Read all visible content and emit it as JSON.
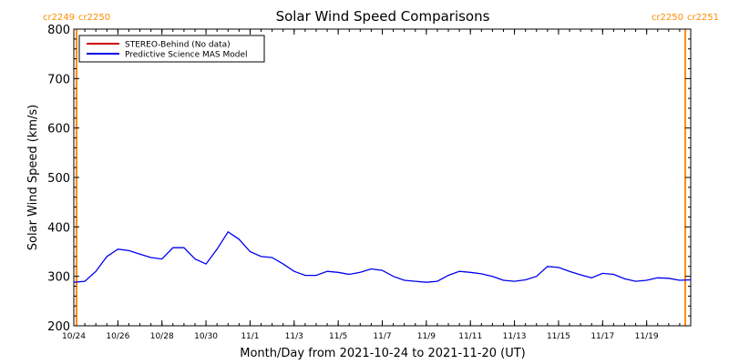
{
  "chart_data": {
    "type": "line",
    "title": "Solar Wind Speed Comparisons",
    "xlabel": "Month/Day from 2021-10-24 to 2021-11-20 (UT)",
    "ylabel": "Solar Wind Speed (km/s)",
    "x_is_date": true,
    "xlim": [
      "2021-10-24",
      "2021-11-21"
    ],
    "ylim": [
      200,
      800
    ],
    "x_ticks": [
      {
        "date": "2021-10-24",
        "label": "10/24"
      },
      {
        "date": "2021-10-26",
        "label": "10/26"
      },
      {
        "date": "2021-10-28",
        "label": "10/28"
      },
      {
        "date": "2021-10-30",
        "label": "10/30"
      },
      {
        "date": "2021-11-01",
        "label": "11/1"
      },
      {
        "date": "2021-11-03",
        "label": "11/3"
      },
      {
        "date": "2021-11-05",
        "label": "11/5"
      },
      {
        "date": "2021-11-07",
        "label": "11/7"
      },
      {
        "date": "2021-11-09",
        "label": "11/9"
      },
      {
        "date": "2021-11-11",
        "label": "11/11"
      },
      {
        "date": "2021-11-13",
        "label": "11/13"
      },
      {
        "date": "2021-11-15",
        "label": "11/15"
      },
      {
        "date": "2021-11-17",
        "label": "11/17"
      },
      {
        "date": "2021-11-19",
        "label": "11/19"
      }
    ],
    "y_ticks": [
      200,
      300,
      400,
      500,
      600,
      700,
      800
    ],
    "grid": false,
    "legend_position": "top-left",
    "series": [
      {
        "name": "STEREO-Behind (No data)",
        "color": "#cc0000",
        "x": [],
        "y": []
      },
      {
        "name": "Predictive Science MAS Model",
        "color": "#0000ee",
        "x": [
          "2021-10-24T00:00",
          "2021-10-24T12:00",
          "2021-10-25T00:00",
          "2021-10-25T12:00",
          "2021-10-26T00:00",
          "2021-10-26T12:00",
          "2021-10-27T00:00",
          "2021-10-27T12:00",
          "2021-10-28T00:00",
          "2021-10-28T12:00",
          "2021-10-29T00:00",
          "2021-10-29T12:00",
          "2021-10-30T00:00",
          "2021-10-30T12:00",
          "2021-10-31T00:00",
          "2021-10-31T12:00",
          "2021-11-01T00:00",
          "2021-11-01T12:00",
          "2021-11-02T00:00",
          "2021-11-02T12:00",
          "2021-11-03T00:00",
          "2021-11-03T12:00",
          "2021-11-04T00:00",
          "2021-11-04T12:00",
          "2021-11-05T00:00",
          "2021-11-05T12:00",
          "2021-11-06T00:00",
          "2021-11-06T12:00",
          "2021-11-07T00:00",
          "2021-11-07T12:00",
          "2021-11-08T00:00",
          "2021-11-08T12:00",
          "2021-11-09T00:00",
          "2021-11-09T12:00",
          "2021-11-10T00:00",
          "2021-11-10T12:00",
          "2021-11-11T00:00",
          "2021-11-11T12:00",
          "2021-11-12T00:00",
          "2021-11-12T12:00",
          "2021-11-13T00:00",
          "2021-11-13T12:00",
          "2021-11-14T00:00",
          "2021-11-14T12:00",
          "2021-11-15T00:00",
          "2021-11-15T12:00",
          "2021-11-16T00:00",
          "2021-11-16T12:00",
          "2021-11-17T00:00",
          "2021-11-17T12:00",
          "2021-11-18T00:00",
          "2021-11-18T12:00",
          "2021-11-19T00:00",
          "2021-11-19T12:00",
          "2021-11-20T00:00",
          "2021-11-20T12:00",
          "2021-11-21T00:00"
        ],
        "y": [
          288,
          290,
          310,
          340,
          355,
          352,
          345,
          338,
          335,
          358,
          358,
          335,
          325,
          355,
          390,
          375,
          350,
          340,
          338,
          325,
          310,
          302,
          302,
          310,
          308,
          304,
          308,
          315,
          312,
          300,
          292,
          290,
          288,
          290,
          302,
          310,
          308,
          305,
          300,
          292,
          290,
          293,
          300,
          320,
          318,
          310,
          303,
          297,
          306,
          304,
          295,
          290,
          292,
          297,
          296,
          292,
          293
        ]
      }
    ],
    "annotations": [
      {
        "date": "2021-10-24T03:00",
        "left_label": "cr2249",
        "right_label": "cr2250",
        "color": "#ff8c00"
      },
      {
        "date": "2021-11-20T18:00",
        "left_label": "cr2250",
        "right_label": "cr2251",
        "color": "#ff8c00"
      }
    ]
  }
}
